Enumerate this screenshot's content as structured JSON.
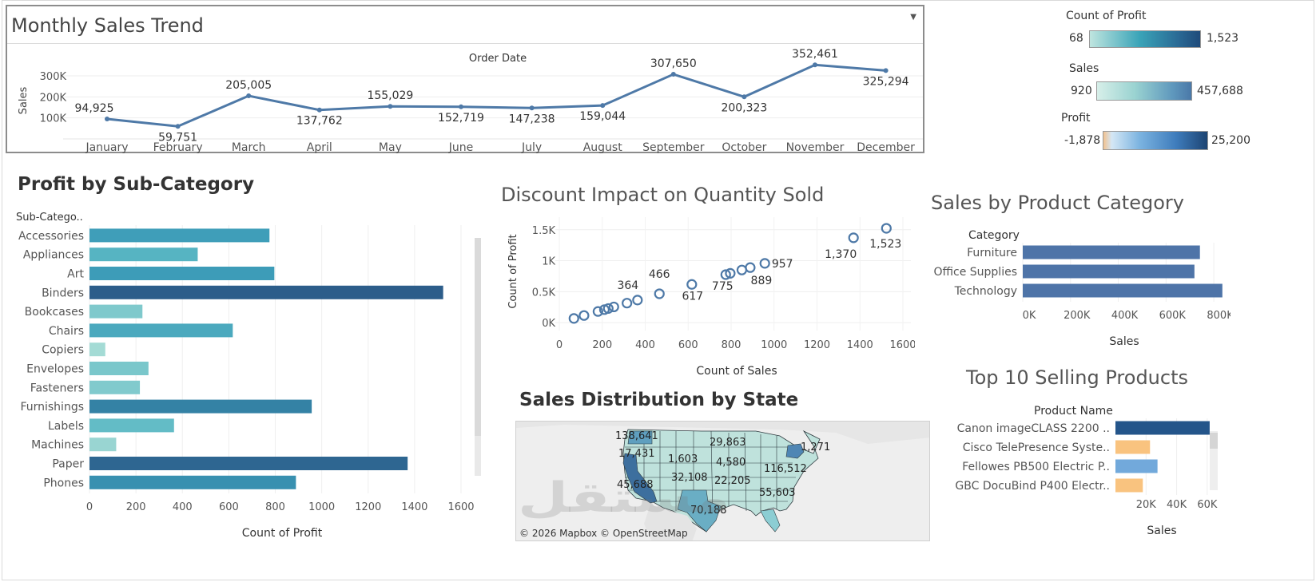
{
  "dashboard": {
    "monthly": {
      "title": "Monthly Sales Trend",
      "axis_label": "Order Date",
      "ylabel": "Sales",
      "chart_data": {
        "type": "line",
        "categories": [
          "January",
          "February",
          "March",
          "April",
          "May",
          "June",
          "July",
          "August",
          "September",
          "October",
          "November",
          "December"
        ],
        "values": [
          94925,
          59751,
          205005,
          137762,
          155029,
          152719,
          147238,
          159044,
          307650,
          200323,
          352461,
          325294
        ],
        "data_labels": [
          "94,925",
          "59,751",
          "205,005",
          "137,762",
          "155,029",
          "152,719",
          "147,238",
          "159,044",
          "307,650",
          "200,323",
          "352,461",
          "325,294"
        ],
        "yticks": [
          "100K",
          "200K",
          "300K"
        ],
        "ytick_values": [
          100000,
          200000,
          300000
        ],
        "ylim": [
          0,
          380000
        ]
      }
    },
    "legends": {
      "count_profit": {
        "title": "Count of Profit",
        "min": "68",
        "max": "1,523"
      },
      "sales": {
        "title": "Sales",
        "min": "920",
        "max": "457,688"
      },
      "profit": {
        "title": "Profit",
        "min": "-1,878",
        "max": "25,200"
      }
    },
    "subcategory": {
      "title": "Profit by Sub-Category",
      "col_header": "Sub-Catego..",
      "xlabel": "Count of Profit",
      "chart_data": {
        "type": "bar",
        "orientation": "horizontal",
        "categories": [
          "Accessories",
          "Appliances",
          "Art",
          "Binders",
          "Bookcases",
          "Chairs",
          "Copiers",
          "Envelopes",
          "Fasteners",
          "Furnishings",
          "Labels",
          "Machines",
          "Paper",
          "Phones"
        ],
        "values": [
          775,
          466,
          796,
          1523,
          228,
          617,
          68,
          254,
          217,
          957,
          364,
          115,
          1370,
          889
        ],
        "color_values": [
          0.62,
          0.38,
          0.64,
          1.0,
          0.18,
          0.5,
          0.02,
          0.2,
          0.17,
          0.8,
          0.3,
          0.07,
          0.95,
          0.72
        ],
        "xticks": [
          0,
          200,
          400,
          600,
          800,
          1000,
          1200,
          1400,
          1600
        ],
        "xlim": [
          0,
          1600
        ]
      }
    },
    "discount": {
      "title": "Discount Impact on Quantity Sold",
      "xlabel": "Count of Sales",
      "ylabel": "Count of Profit",
      "chart_data": {
        "type": "scatter",
        "x": [
          68,
          115,
          180,
          210,
          228,
          254,
          315,
          364,
          466,
          617,
          775,
          796,
          850,
          889,
          957,
          1370,
          1523
        ],
        "y": [
          68,
          115,
          180,
          210,
          228,
          254,
          315,
          364,
          466,
          617,
          775,
          796,
          850,
          889,
          957,
          1370,
          1523
        ],
        "point_labels": [
          {
            "i": 7,
            "text": "364"
          },
          {
            "i": 8,
            "text": "466"
          },
          {
            "i": 9,
            "text": "617"
          },
          {
            "i": 10,
            "text": "775"
          },
          {
            "i": 13,
            "text": "889"
          },
          {
            "i": 14,
            "text": "957"
          },
          {
            "i": 15,
            "text": "1,370"
          },
          {
            "i": 16,
            "text": "1,523"
          }
        ],
        "xticks": [
          0,
          200,
          400,
          600,
          800,
          1000,
          1200,
          1400,
          1600
        ],
        "yticks": [
          0,
          500,
          1000,
          1500
        ],
        "ytick_labels": [
          "0K",
          "0.5K",
          "1K",
          "1.5K"
        ],
        "xlim": [
          0,
          1600
        ],
        "ylim": [
          -50,
          1600
        ]
      }
    },
    "category": {
      "title": "Sales by Product Category",
      "col_header": "Category",
      "xlabel": "Sales",
      "chart_data": {
        "type": "bar",
        "orientation": "horizontal",
        "categories": [
          "Furniture",
          "Office Supplies",
          "Technology"
        ],
        "values": [
          742000,
          719000,
          836000
        ],
        "xticks": [
          0,
          200000,
          400000,
          600000,
          800000
        ],
        "xtick_labels": [
          "0K",
          "200K",
          "400K",
          "600K",
          "800K"
        ],
        "xlim": [
          0,
          850000
        ]
      }
    },
    "top10": {
      "title": "Top 10 Selling Products",
      "col_header": "Product Name",
      "xlabel": "Sales",
      "chart_data": {
        "type": "bar",
        "orientation": "horizontal",
        "categories": [
          "Canon imageCLASS 2200 ..",
          "Cisco TelePresence Syste..",
          "Fellowes PB500 Electric P..",
          "GBC DocuBind P400 Electr.."
        ],
        "values": [
          61600,
          22600,
          27500,
          17900
        ],
        "colors": [
          "#24558a",
          "#f9c37f",
          "#72a9db",
          "#f9c37f"
        ],
        "xticks": [
          20000,
          40000,
          60000
        ],
        "xtick_labels": [
          "20K",
          "40K",
          "60K"
        ],
        "xlim": [
          0,
          70000
        ]
      }
    },
    "map": {
      "title": "Sales Distribution by State",
      "attribution": "© 2026 Mapbox  © OpenStreetMap",
      "labels": [
        "138,641",
        "17,431",
        "1,603",
        "29,863",
        "4,580",
        "1,271",
        "45,688",
        "32,108",
        "22,205",
        "116,512",
        "55,603",
        "70,188"
      ]
    },
    "watermark": "مستقل"
  }
}
